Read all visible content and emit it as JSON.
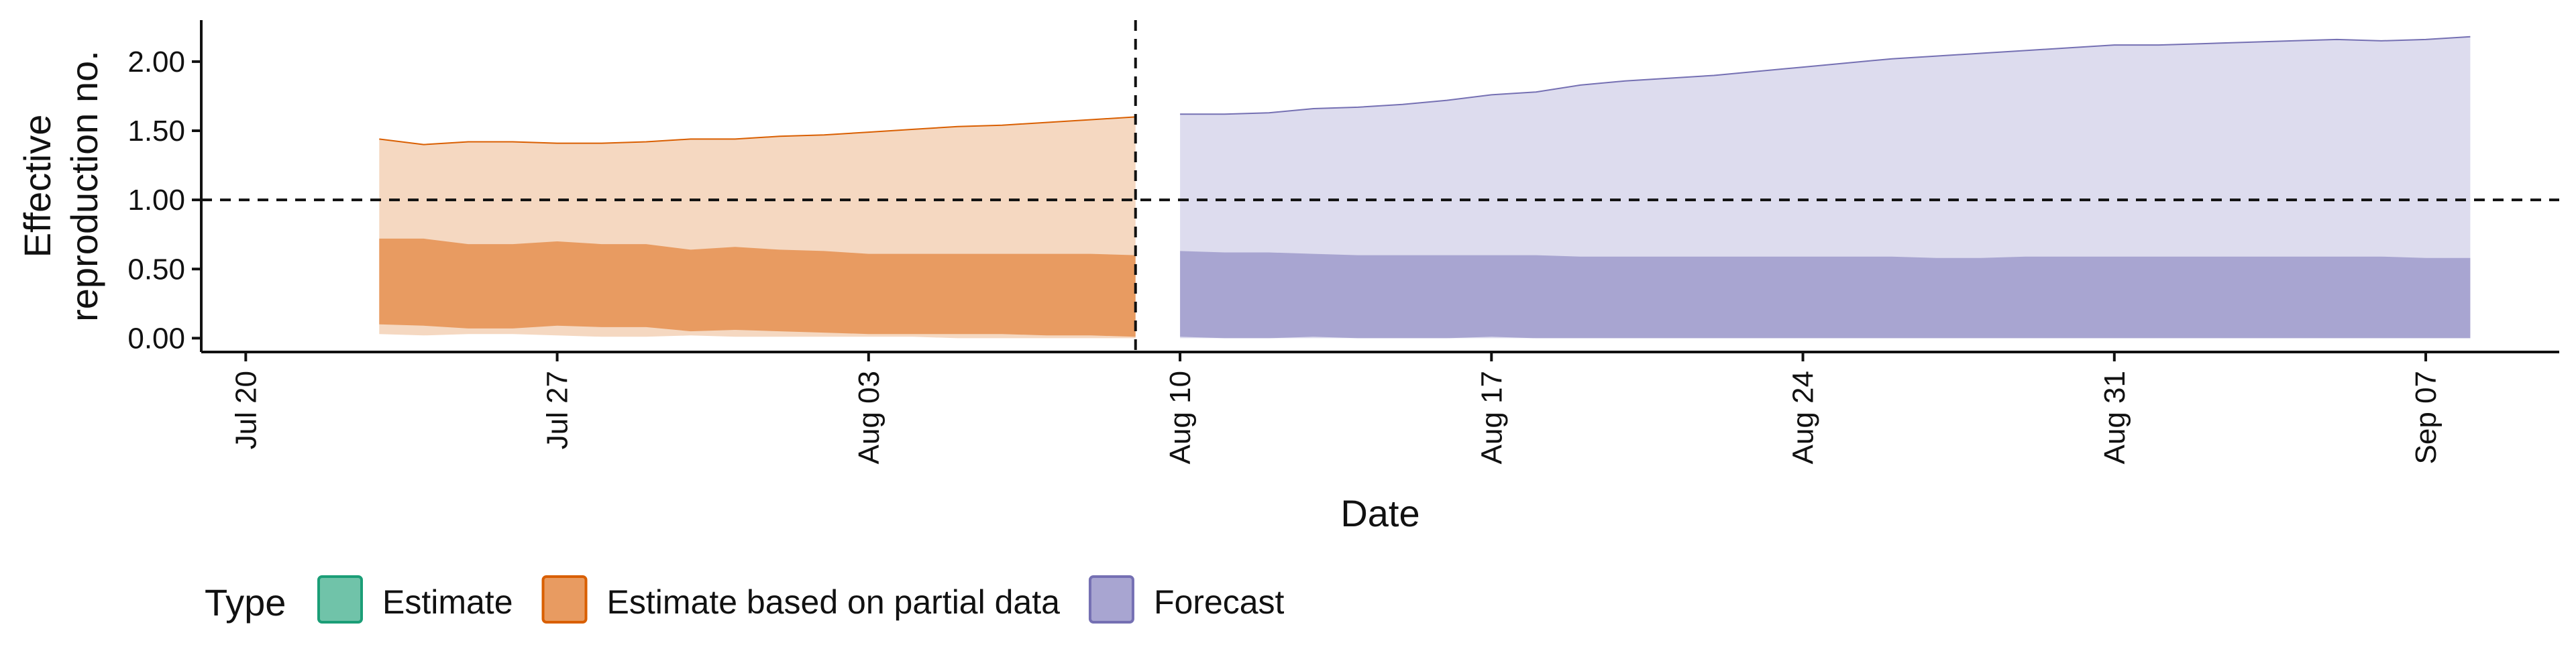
{
  "chart_data": {
    "type": "area",
    "title": "",
    "xlabel": "Date",
    "ylabel_lines": [
      "Effective",
      "reproduction no."
    ],
    "x_ticks": [
      "Jul 20",
      "Jul 27",
      "Aug 03",
      "Aug 10",
      "Aug 17",
      "Aug 24",
      "Aug 31",
      "Sep 07"
    ],
    "y_ticks": [
      "0.00",
      "0.50",
      "1.00",
      "1.50",
      "2.00"
    ],
    "xlim": [
      "2020-07-19",
      "2020-09-10"
    ],
    "ylim": [
      -0.1,
      2.3
    ],
    "reference_line_y": 1.0,
    "reference_vline_x": "2020-08-09",
    "grid": false,
    "legend": {
      "title": "Type",
      "position": "bottom",
      "items": [
        {
          "label": "Estimate",
          "fill": "#70c3a9",
          "stroke": "#1b9e77"
        },
        {
          "label": "Estimate based on partial data",
          "fill": "#e89b61",
          "stroke": "#d95f02"
        },
        {
          "label": "Forecast",
          "fill": "#a8a5d1",
          "stroke": "#7570b3"
        }
      ]
    },
    "series": [
      {
        "name": "Estimate based on partial data",
        "color": "#d95f02",
        "outer_fill": "#f5d8c1",
        "inner_fill": "#e89b61",
        "x": [
          "2020-07-23",
          "2020-07-24",
          "2020-07-25",
          "2020-07-26",
          "2020-07-27",
          "2020-07-28",
          "2020-07-29",
          "2020-07-30",
          "2020-07-31",
          "2020-08-01",
          "2020-08-02",
          "2020-08-03",
          "2020-08-04",
          "2020-08-05",
          "2020-08-06",
          "2020-08-07",
          "2020-08-08",
          "2020-08-09"
        ],
        "upper90": [
          1.44,
          1.4,
          1.42,
          1.42,
          1.41,
          1.41,
          1.42,
          1.44,
          1.44,
          1.46,
          1.47,
          1.49,
          1.51,
          1.53,
          1.54,
          1.56,
          1.58,
          1.6
        ],
        "upper50": [
          0.72,
          0.72,
          0.68,
          0.68,
          0.7,
          0.68,
          0.68,
          0.64,
          0.66,
          0.64,
          0.63,
          0.61,
          0.61,
          0.61,
          0.61,
          0.61,
          0.61,
          0.6
        ],
        "lower50": [
          0.1,
          0.09,
          0.07,
          0.07,
          0.09,
          0.08,
          0.08,
          0.05,
          0.06,
          0.05,
          0.04,
          0.03,
          0.03,
          0.03,
          0.03,
          0.02,
          0.02,
          0.01
        ],
        "lower90": [
          0.03,
          0.02,
          0.03,
          0.03,
          0.02,
          0.01,
          0.01,
          0.02,
          0.01,
          0.01,
          0.01,
          0.01,
          0.01,
          0.0,
          0.0,
          0.0,
          0.0,
          0.0
        ]
      },
      {
        "name": "Forecast",
        "color": "#7570b3",
        "outer_fill": "#dddcee",
        "inner_fill": "#a8a5d1",
        "x": [
          "2020-08-10",
          "2020-08-11",
          "2020-08-12",
          "2020-08-13",
          "2020-08-14",
          "2020-08-15",
          "2020-08-16",
          "2020-08-17",
          "2020-08-18",
          "2020-08-19",
          "2020-08-20",
          "2020-08-21",
          "2020-08-22",
          "2020-08-23",
          "2020-08-24",
          "2020-08-25",
          "2020-08-26",
          "2020-08-27",
          "2020-08-28",
          "2020-08-29",
          "2020-08-30",
          "2020-08-31",
          "2020-09-01",
          "2020-09-02",
          "2020-09-03",
          "2020-09-04",
          "2020-09-05",
          "2020-09-06",
          "2020-09-07",
          "2020-09-08"
        ],
        "upper90": [
          1.62,
          1.62,
          1.63,
          1.66,
          1.67,
          1.69,
          1.72,
          1.76,
          1.78,
          1.83,
          1.86,
          1.88,
          1.9,
          1.93,
          1.96,
          1.99,
          2.02,
          2.04,
          2.06,
          2.08,
          2.1,
          2.12,
          2.12,
          2.13,
          2.14,
          2.15,
          2.16,
          2.15,
          2.16,
          2.18
        ],
        "upper50": [
          0.63,
          0.62,
          0.62,
          0.61,
          0.6,
          0.6,
          0.6,
          0.6,
          0.6,
          0.59,
          0.59,
          0.59,
          0.59,
          0.59,
          0.59,
          0.59,
          0.59,
          0.58,
          0.58,
          0.59,
          0.59,
          0.59,
          0.59,
          0.59,
          0.59,
          0.59,
          0.59,
          0.59,
          0.58,
          0.58
        ],
        "lower50": [
          0.01,
          0.0,
          0.0,
          0.01,
          0.0,
          0.0,
          0.0,
          0.01,
          0.0,
          0.0,
          0.0,
          0.0,
          0.0,
          0.0,
          0.0,
          0.0,
          0.0,
          0.0,
          0.0,
          0.0,
          0.0,
          0.0,
          0.0,
          0.0,
          0.0,
          0.0,
          0.0,
          0.0,
          0.0,
          0.0
        ],
        "lower90": [
          0.0,
          0.0,
          0.0,
          0.0,
          0.0,
          0.0,
          0.0,
          0.0,
          0.0,
          0.0,
          0.0,
          0.0,
          0.0,
          0.0,
          0.0,
          0.0,
          0.0,
          0.0,
          0.0,
          0.0,
          0.0,
          0.0,
          0.0,
          0.0,
          0.0,
          0.0,
          0.0,
          0.0,
          0.0,
          0.0
        ]
      }
    ]
  }
}
